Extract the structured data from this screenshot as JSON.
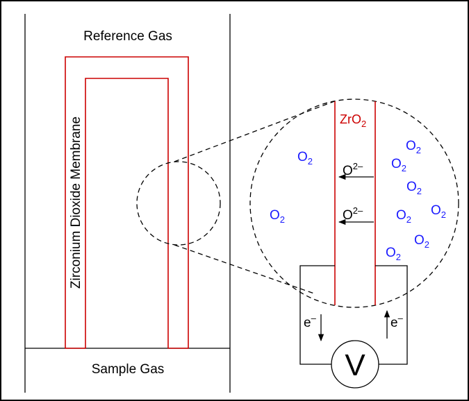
{
  "labels": {
    "reference_gas": "Reference Gas",
    "sample_gas": "Sample Gas",
    "membrane": "Zirconium Dioxide Membrane",
    "zro2_base": "ZrO",
    "zro2_sub": "2",
    "o2_base": "O",
    "o2_sub": "2",
    "oxide_ion_base": "O",
    "oxide_ion_sup": "2–",
    "electron_base": "e",
    "electron_sup": "–",
    "voltmeter": "V"
  },
  "colors": {
    "membrane": "#cc0000",
    "oxygen": "#1a1aff",
    "line": "#000000"
  }
}
